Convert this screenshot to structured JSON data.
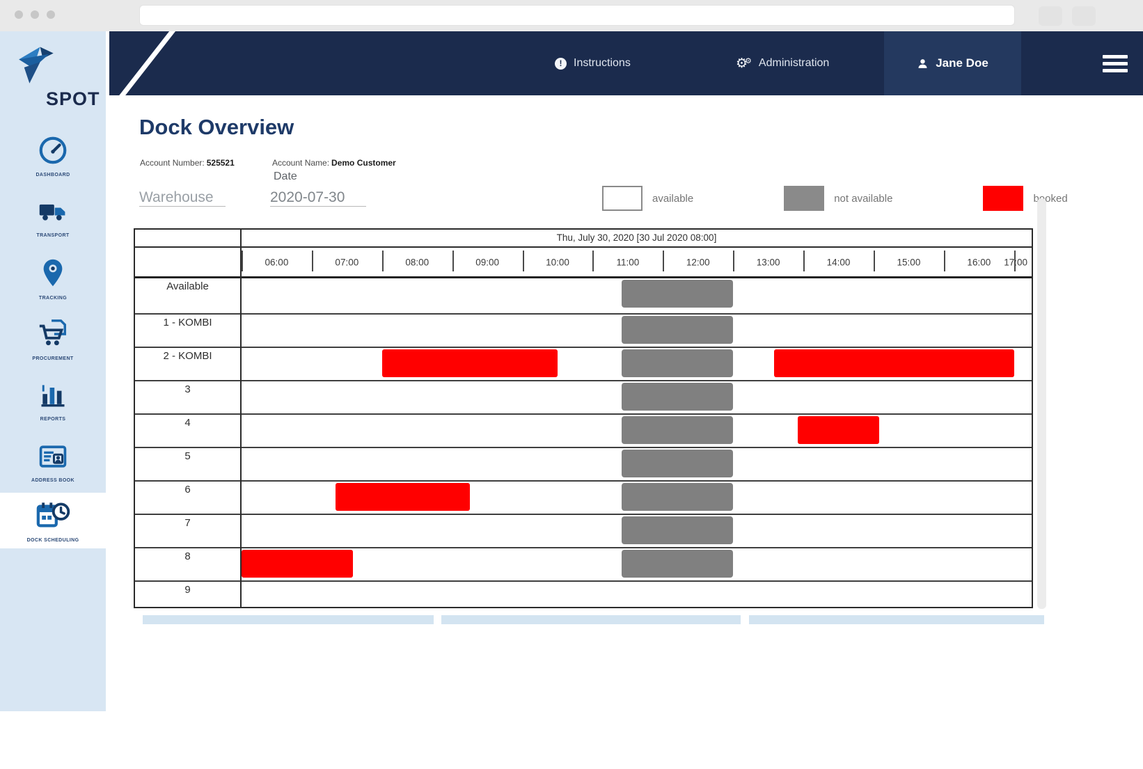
{
  "browser": {
    "url_value": ""
  },
  "navbar": {
    "items": [
      {
        "label": "Instructions",
        "icon": "info-icon"
      },
      {
        "label": "Administration",
        "icon": "gears-icon"
      }
    ],
    "user": {
      "name": "Jane Doe",
      "icon": "person-icon"
    },
    "menu_icon": "hamburger-icon"
  },
  "sidebar": {
    "logo_text": "SPOT",
    "logo_icon": "bird-logo-icon",
    "items": [
      {
        "label": "DASHBOARD",
        "icon": "dashboard-icon",
        "active": false
      },
      {
        "label": "TRANSPORT",
        "icon": "truck-icon",
        "active": false
      },
      {
        "label": "TRACKING",
        "icon": "map-pin-icon",
        "active": false
      },
      {
        "label": "PROCUREMENT",
        "icon": "cart-icon",
        "active": false
      },
      {
        "label": "REPORTS",
        "icon": "bar-chart-icon",
        "active": false
      },
      {
        "label": "ADDRESS BOOK",
        "icon": "address-card-icon",
        "active": false
      },
      {
        "label": "DOCK SCHEDULING",
        "icon": "calendar-clock-icon",
        "active": true
      }
    ]
  },
  "page": {
    "title": "Dock Overview",
    "account_number_label": "Account Number:",
    "account_number": "525521",
    "account_name_label": "Account Name:",
    "account_name": "Demo Customer",
    "warehouse_placeholder": "Warehouse",
    "date_label": "Date",
    "date_value": "2020-07-30"
  },
  "legend": [
    {
      "label": "available",
      "color": "#ffffff",
      "border": "#8a8a8a"
    },
    {
      "label": "not available",
      "color": "#8a8a8a",
      "border": "#8a8a8a"
    },
    {
      "label": "booked",
      "color": "#ff0000",
      "border": "#ff0000"
    }
  ],
  "colors": {
    "navbar": "#1b2b4d",
    "sidebar_bg": "#d8e6f3",
    "accent_blue": "#1a68ad",
    "title_text": "#1e3a68",
    "booked": "#ff0000",
    "not_available": "#808080"
  },
  "chart_data": {
    "type": "table",
    "title": "Thu, July 30, 2020 [30 Jul 2020 08:00]",
    "x_ticks": [
      "06:00",
      "07:00",
      "08:00",
      "09:00",
      "10:00",
      "11:00",
      "12:00",
      "13:00",
      "14:00",
      "15:00",
      "16:00",
      "17:00"
    ],
    "axis_start": "06:00",
    "axis_end": "17:15",
    "rows": [
      {
        "label": "Available",
        "blocks": [
          {
            "status": "not available",
            "start": "11:25",
            "end": "13:00"
          }
        ]
      },
      {
        "label": "1 - KOMBI",
        "blocks": [
          {
            "status": "not available",
            "start": "11:25",
            "end": "13:00"
          }
        ]
      },
      {
        "label": "2 - KOMBI",
        "blocks": [
          {
            "status": "booked",
            "start": "08:00",
            "end": "10:30"
          },
          {
            "status": "not available",
            "start": "11:25",
            "end": "13:00"
          },
          {
            "status": "booked",
            "start": "13:35",
            "end": "17:00"
          }
        ]
      },
      {
        "label": "3",
        "blocks": [
          {
            "status": "not available",
            "start": "11:25",
            "end": "13:00"
          }
        ]
      },
      {
        "label": "4",
        "blocks": [
          {
            "status": "not available",
            "start": "11:25",
            "end": "13:00"
          },
          {
            "status": "booked",
            "start": "13:55",
            "end": "15:05"
          }
        ]
      },
      {
        "label": "5",
        "blocks": [
          {
            "status": "not available",
            "start": "11:25",
            "end": "13:00"
          }
        ]
      },
      {
        "label": "6",
        "blocks": [
          {
            "status": "booked",
            "start": "07:20",
            "end": "09:15"
          },
          {
            "status": "not available",
            "start": "11:25",
            "end": "13:00"
          }
        ]
      },
      {
        "label": "7",
        "blocks": [
          {
            "status": "not available",
            "start": "11:25",
            "end": "13:00"
          }
        ]
      },
      {
        "label": "8",
        "blocks": [
          {
            "status": "booked",
            "start": "06:00",
            "end": "07:35"
          },
          {
            "status": "not available",
            "start": "11:25",
            "end": "13:00"
          }
        ]
      },
      {
        "label": "9",
        "blocks": []
      }
    ]
  }
}
